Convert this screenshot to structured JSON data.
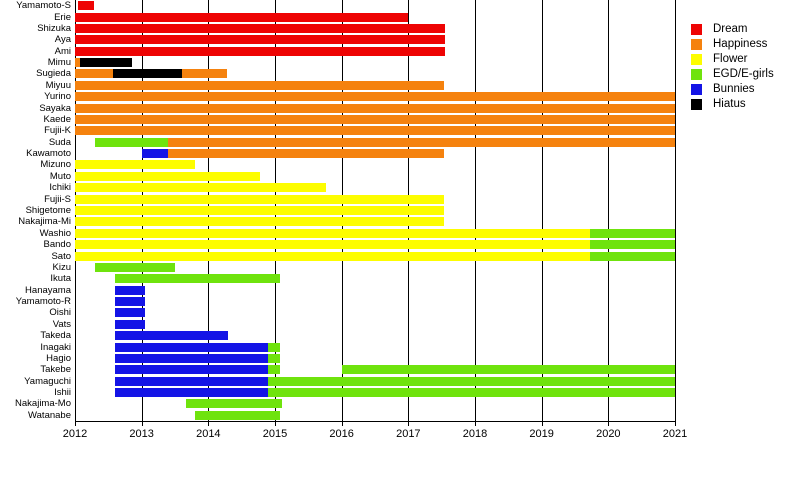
{
  "chart_data": {
    "type": "gantt_timeline",
    "title": "",
    "x_axis": {
      "min": 2012,
      "max": 2021,
      "tick_years": [
        2012,
        2013,
        2014,
        2015,
        2016,
        2017,
        2018,
        2019,
        2020,
        2021
      ]
    },
    "legend": [
      {
        "label": "Dream",
        "color": "#ee0404"
      },
      {
        "label": "Happiness",
        "color": "#f5820e"
      },
      {
        "label": "Flower",
        "color": "#fdfd00"
      },
      {
        "label": "EGD/E-girls",
        "color": "#6fe30d"
      },
      {
        "label": "Bunnies",
        "color": "#1414e6"
      },
      {
        "label": "Hiatus",
        "color": "#000000"
      }
    ],
    "rows": [
      {
        "name": "Yamamoto-S",
        "segments": [
          {
            "from": 2012.05,
            "to": 2012.28,
            "group": "Dream"
          }
        ]
      },
      {
        "name": "Erie",
        "segments": [
          {
            "from": 2012.0,
            "to": 2017.0,
            "group": "Dream"
          }
        ]
      },
      {
        "name": "Shizuka",
        "segments": [
          {
            "from": 2012.0,
            "to": 2017.55,
            "group": "Dream"
          }
        ]
      },
      {
        "name": "Aya",
        "segments": [
          {
            "from": 2012.0,
            "to": 2017.55,
            "group": "Dream"
          }
        ]
      },
      {
        "name": "Ami",
        "segments": [
          {
            "from": 2012.0,
            "to": 2017.55,
            "group": "Dream"
          }
        ]
      },
      {
        "name": "Mimu",
        "segments": [
          {
            "from": 2012.0,
            "to": 2012.07,
            "group": "Happiness"
          },
          {
            "from": 2012.07,
            "to": 2012.85,
            "group": "Hiatus"
          }
        ]
      },
      {
        "name": "Sugieda",
        "segments": [
          {
            "from": 2012.0,
            "to": 2012.57,
            "group": "Happiness"
          },
          {
            "from": 2012.57,
            "to": 2013.6,
            "group": "Hiatus"
          },
          {
            "from": 2013.6,
            "to": 2014.28,
            "group": "Happiness"
          }
        ]
      },
      {
        "name": "Miyuu",
        "segments": [
          {
            "from": 2012.0,
            "to": 2017.54,
            "group": "Happiness"
          }
        ]
      },
      {
        "name": "Yurino",
        "segments": [
          {
            "from": 2012.0,
            "to": 2021.0,
            "group": "Happiness"
          }
        ]
      },
      {
        "name": "Sayaka",
        "segments": [
          {
            "from": 2012.0,
            "to": 2021.0,
            "group": "Happiness"
          }
        ]
      },
      {
        "name": "Kaede",
        "segments": [
          {
            "from": 2012.0,
            "to": 2021.0,
            "group": "Happiness"
          }
        ]
      },
      {
        "name": "Fujii-K",
        "segments": [
          {
            "from": 2012.0,
            "to": 2021.0,
            "group": "Happiness"
          }
        ]
      },
      {
        "name": "Suda",
        "segments": [
          {
            "from": 2012.3,
            "to": 2013.4,
            "group": "EGD/E-girls"
          },
          {
            "from": 2013.4,
            "to": 2021.0,
            "group": "Happiness"
          }
        ]
      },
      {
        "name": "Kawamoto",
        "segments": [
          {
            "from": 2013.0,
            "to": 2013.4,
            "group": "Bunnies"
          },
          {
            "from": 2013.4,
            "to": 2017.54,
            "group": "Happiness"
          }
        ]
      },
      {
        "name": "Mizuno",
        "segments": [
          {
            "from": 2012.0,
            "to": 2013.8,
            "group": "Flower"
          }
        ]
      },
      {
        "name": "Muto",
        "segments": [
          {
            "from": 2012.0,
            "to": 2014.78,
            "group": "Flower"
          }
        ]
      },
      {
        "name": "Ichiki",
        "segments": [
          {
            "from": 2012.0,
            "to": 2015.76,
            "group": "Flower"
          }
        ]
      },
      {
        "name": "Fujii-S",
        "segments": [
          {
            "from": 2012.0,
            "to": 2017.54,
            "group": "Flower"
          }
        ]
      },
      {
        "name": "Shigetome",
        "segments": [
          {
            "from": 2012.0,
            "to": 2017.54,
            "group": "Flower"
          }
        ]
      },
      {
        "name": "Nakajima-Mi",
        "segments": [
          {
            "from": 2012.0,
            "to": 2017.54,
            "group": "Flower"
          }
        ]
      },
      {
        "name": "Washio",
        "segments": [
          {
            "from": 2012.0,
            "to": 2019.72,
            "group": "Flower"
          },
          {
            "from": 2019.72,
            "to": 2021.0,
            "group": "EGD/E-girls"
          }
        ]
      },
      {
        "name": "Bando",
        "segments": [
          {
            "from": 2012.0,
            "to": 2019.72,
            "group": "Flower"
          },
          {
            "from": 2019.72,
            "to": 2021.0,
            "group": "EGD/E-girls"
          }
        ]
      },
      {
        "name": "Sato",
        "segments": [
          {
            "from": 2012.0,
            "to": 2019.72,
            "group": "Flower"
          },
          {
            "from": 2019.72,
            "to": 2021.0,
            "group": "EGD/E-girls"
          }
        ]
      },
      {
        "name": "Kizu",
        "segments": [
          {
            "from": 2012.3,
            "to": 2013.5,
            "group": "EGD/E-girls"
          }
        ]
      },
      {
        "name": "Ikuta",
        "segments": [
          {
            "from": 2012.6,
            "to": 2015.08,
            "group": "EGD/E-girls"
          }
        ]
      },
      {
        "name": "Hanayama",
        "segments": [
          {
            "from": 2012.6,
            "to": 2013.05,
            "group": "Bunnies"
          }
        ]
      },
      {
        "name": "Yamamoto-R",
        "segments": [
          {
            "from": 2012.6,
            "to": 2013.05,
            "group": "Bunnies"
          }
        ]
      },
      {
        "name": "Oishi",
        "segments": [
          {
            "from": 2012.6,
            "to": 2013.05,
            "group": "Bunnies"
          }
        ]
      },
      {
        "name": "Vats",
        "segments": [
          {
            "from": 2012.6,
            "to": 2013.05,
            "group": "Bunnies"
          }
        ]
      },
      {
        "name": "Takeda",
        "segments": [
          {
            "from": 2012.6,
            "to": 2014.3,
            "group": "Bunnies"
          }
        ]
      },
      {
        "name": "Inagaki",
        "segments": [
          {
            "from": 2012.6,
            "to": 2014.9,
            "group": "Bunnies"
          },
          {
            "from": 2014.9,
            "to": 2015.08,
            "group": "EGD/E-girls"
          }
        ]
      },
      {
        "name": "Hagio",
        "segments": [
          {
            "from": 2012.6,
            "to": 2014.9,
            "group": "Bunnies"
          },
          {
            "from": 2014.9,
            "to": 2015.08,
            "group": "EGD/E-girls"
          }
        ]
      },
      {
        "name": "Takebe",
        "segments": [
          {
            "from": 2012.6,
            "to": 2014.9,
            "group": "Bunnies"
          },
          {
            "from": 2014.9,
            "to": 2015.08,
            "group": "EGD/E-girls"
          },
          {
            "from": 2016.0,
            "to": 2021.0,
            "group": "EGD/E-girls"
          }
        ]
      },
      {
        "name": "Yamaguchi",
        "segments": [
          {
            "from": 2012.6,
            "to": 2014.9,
            "group": "Bunnies"
          },
          {
            "from": 2014.9,
            "to": 2021.0,
            "group": "EGD/E-girls"
          }
        ]
      },
      {
        "name": "Ishii",
        "segments": [
          {
            "from": 2012.6,
            "to": 2014.9,
            "group": "Bunnies"
          },
          {
            "from": 2014.9,
            "to": 2021.0,
            "group": "EGD/E-girls"
          }
        ]
      },
      {
        "name": "Nakajima-Mo",
        "segments": [
          {
            "from": 2013.67,
            "to": 2015.1,
            "group": "EGD/E-girls"
          }
        ]
      },
      {
        "name": "Watanabe",
        "segments": [
          {
            "from": 2013.8,
            "to": 2015.08,
            "group": "EGD/E-girls"
          }
        ]
      }
    ]
  }
}
